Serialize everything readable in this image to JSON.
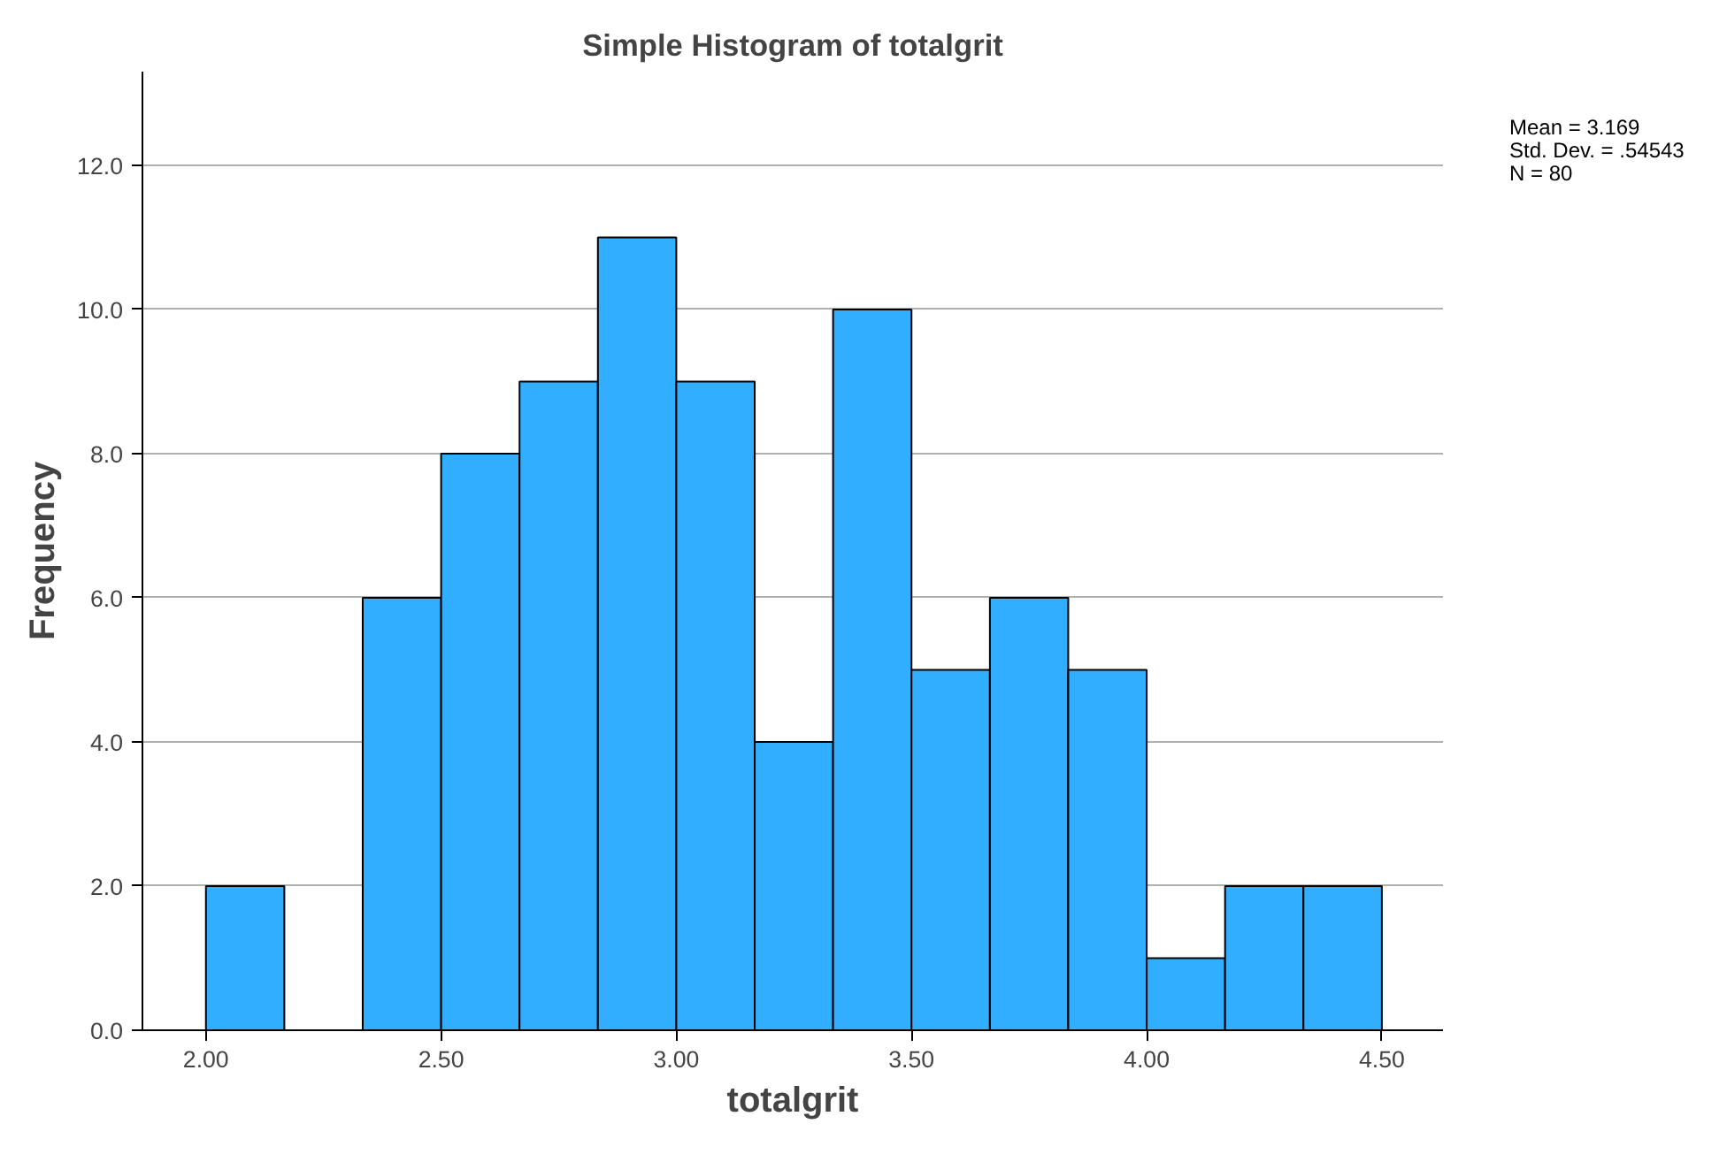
{
  "chart_data": {
    "type": "histogram",
    "title": "Simple Histogram of totalgrit",
    "xlabel": "totalgrit",
    "ylabel": "Frequency",
    "bins": [
      2.0,
      2.1667,
      2.3333,
      2.5,
      2.6667,
      2.8333,
      3.0,
      3.1667,
      3.3333,
      3.5,
      3.6667,
      3.8333,
      4.0,
      4.1667,
      4.3333,
      4.5
    ],
    "values": [
      2,
      0,
      6,
      8,
      9,
      11,
      9,
      4,
      10,
      5,
      6,
      5,
      1,
      2,
      2
    ],
    "color": "#31aeff",
    "xlim": [
      1.865,
      4.63
    ],
    "ylim": [
      0,
      13.3
    ],
    "xticks": [
      {
        "value": 2.0,
        "label": "2.00"
      },
      {
        "value": 2.5,
        "label": "2.50"
      },
      {
        "value": 3.0,
        "label": "3.00"
      },
      {
        "value": 3.5,
        "label": "3.50"
      },
      {
        "value": 4.0,
        "label": "4.00"
      },
      {
        "value": 4.5,
        "label": "4.50"
      }
    ],
    "yticks": [
      {
        "value": 0,
        "label": "0.0"
      },
      {
        "value": 2,
        "label": "2.0"
      },
      {
        "value": 4,
        "label": "4.0"
      },
      {
        "value": 6,
        "label": "6.0"
      },
      {
        "value": 8,
        "label": "8.0"
      },
      {
        "value": 10,
        "label": "10.0"
      },
      {
        "value": 12,
        "label": "12.0"
      }
    ],
    "grid": "y",
    "annotations": [
      "Mean = 3.169",
      "Std. Dev. = .54543",
      "N = 80"
    ]
  }
}
